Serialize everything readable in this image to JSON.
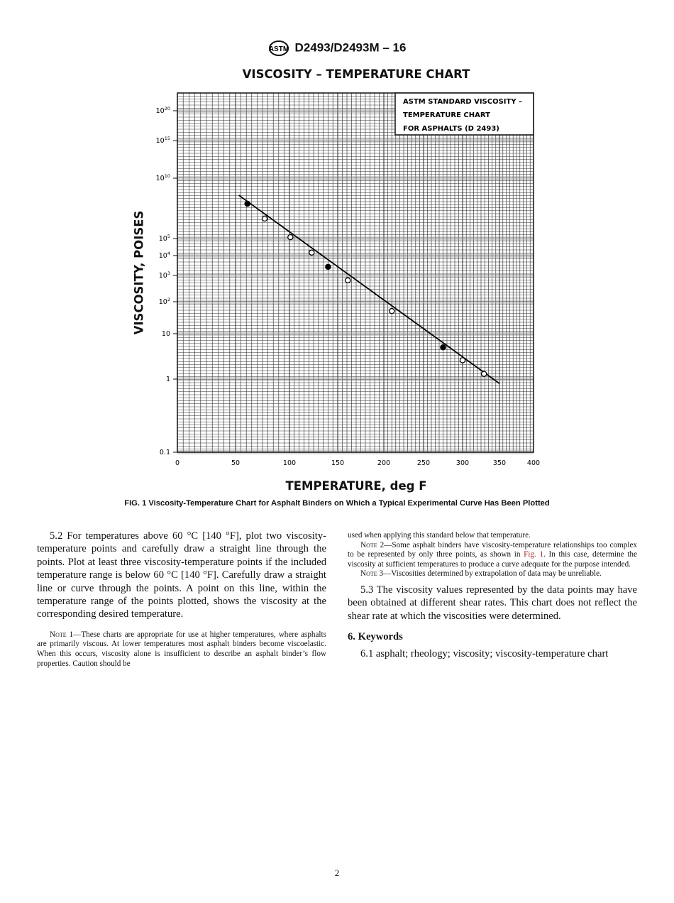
{
  "header": {
    "logo": "ASTM",
    "designation": "D2493/D2493M – 16"
  },
  "chart_data": {
    "type": "scatter",
    "title": "VISCOSITY – TEMPERATURE CHART",
    "xlabel": "TEMPERATURE, deg F",
    "ylabel": "VISCOSITY, POISES",
    "x_ticks": [
      0,
      50,
      100,
      150,
      200,
      250,
      300,
      350,
      400
    ],
    "x_tick_labels": [
      "0",
      "50",
      "100",
      "150",
      "200",
      "250",
      "300",
      "350",
      "400"
    ],
    "y_ticks": [
      0.1,
      1,
      10,
      100,
      1000,
      10000,
      100000,
      10000000000.0,
      1000000000000000.0,
      1e+20
    ],
    "y_tick_labels": [
      {
        "base": "0.1",
        "exp": ""
      },
      {
        "base": "1",
        "exp": ""
      },
      {
        "base": "10",
        "exp": ""
      },
      {
        "base": "10",
        "exp": "2"
      },
      {
        "base": "10",
        "exp": "3"
      },
      {
        "base": "10",
        "exp": "4"
      },
      {
        "base": "10",
        "exp": "5"
      },
      {
        "base": "10",
        "exp": "10"
      },
      {
        "base": "10",
        "exp": "15"
      },
      {
        "base": "10",
        "exp": "20"
      }
    ],
    "xlim": [
      0,
      400
    ],
    "ylim": [
      0.1,
      1e+21
    ],
    "x_scale": "ASTM viscosity-temperature (log temperature)",
    "y_scale": "log-log",
    "grid": true,
    "legend_box": [
      "ASTM STANDARD VISCOSITY –",
      "TEMPERATURE CHART",
      "FOR ASPHALTS (D 2493)"
    ],
    "legend_placement": "top-right",
    "points": [
      {
        "x": 61,
        "y": 76000000.0,
        "filled": true
      },
      {
        "x": 77,
        "y": 4500000.0,
        "filled": false
      },
      {
        "x": 101,
        "y": 130000.0,
        "filled": false
      },
      {
        "x": 123,
        "y": 15000.0,
        "filled": false
      },
      {
        "x": 140,
        "y": 2700,
        "filled": true
      },
      {
        "x": 161,
        "y": 650,
        "filled": false
      },
      {
        "x": 210,
        "y": 51,
        "filled": false
      },
      {
        "x": 275,
        "y": 5.0,
        "filled": true
      },
      {
        "x": 300,
        "y": 2.6,
        "filled": false
      },
      {
        "x": 329,
        "y": 1.3,
        "filled": false
      }
    ],
    "fit_line": [
      {
        "x": 53,
        "y": 390000000.0
      },
      {
        "x": 350,
        "y": 0.87
      }
    ],
    "colors": {
      "line": "#000000",
      "grid": "#333333"
    }
  },
  "caption": "FIG. 1 Viscosity-Temperature Chart for Asphalt Binders on Which a Typical Experimental Curve Has Been Plotted",
  "left_column": {
    "p52": "5.2 For temperatures above 60 °C [140 °F], plot two viscosity-temperature points and carefully draw a straight line through the points. Plot at least three viscosity-temperature points if the included temperature range is below 60 °C [140 °F]. Carefully draw a straight line or curve through the points. A point on this line, within the temperature range of the points plotted, shows the viscosity at the corresponding desired temperature.",
    "note1_label": "Note",
    "note1_text": " 1—These charts are appropriate for use at higher temperatures, where asphalts are primarily viscous. At lower temperatures most asphalt binders become viscoelastic. When this occurs, viscosity alone is insufficient to describe an asphalt binder’s flow properties. Caution should be"
  },
  "right_column": {
    "note1_cont": "used when applying this standard below that temperature.",
    "note2_label": "Note",
    "note2_text_a": " 2—Some asphalt binders have viscosity-temperature relationships too complex to be represented by only three points, as shown in ",
    "note2_link": "Fig. 1",
    "note2_text_b": ". In this case, determine the viscosity at sufficient temperatures to produce a curve adequate for the purpose intended.",
    "note3_label": "Note",
    "note3_text": " 3—Viscosities determined by extrapolation of data may be unreliable.",
    "p53": "5.3 The viscosity values represented by the data points may have been obtained at different shear rates. This chart does not reflect the shear rate at which the viscosities were determined.",
    "section6_heading": "6. Keywords",
    "p61": "6.1 asphalt; rheology; viscosity; viscosity-temperature chart"
  },
  "page_number": "2"
}
